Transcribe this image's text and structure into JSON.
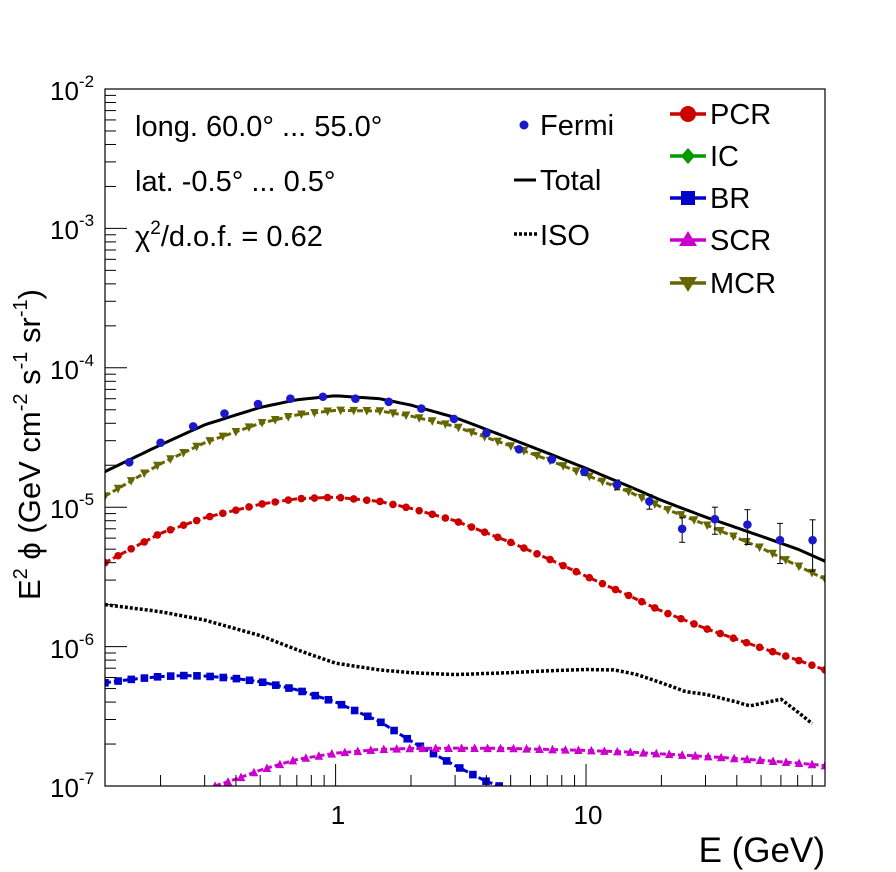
{
  "chart_data": {
    "type": "line",
    "title": "",
    "xlabel": "E (GeV)",
    "ylabel": "E² ϕ (GeV cm⁻² s⁻¹ sr⁻¹)",
    "ylabel_parts": {
      "base": "E",
      "sup1": "2",
      "phi": " ϕ (GeV cm",
      "sup2": "-2",
      "s": " s",
      "sup3": "-1",
      "sr": " sr",
      "sup4": "-1",
      "close": ")"
    },
    "xscale": "log",
    "yscale": "log",
    "xlim": [
      0.12,
      90
    ],
    "ylim": [
      1e-07,
      0.01
    ],
    "x_ticks": [
      {
        "value": 1,
        "label": "1"
      },
      {
        "value": 10,
        "label": "10"
      }
    ],
    "y_ticks": [
      {
        "value": 1e-07,
        "base": "10",
        "exp": "-7"
      },
      {
        "value": 1e-06,
        "base": "10",
        "exp": "-6"
      },
      {
        "value": 1e-05,
        "base": "10",
        "exp": "-5"
      },
      {
        "value": 0.0001,
        "base": "10",
        "exp": "-4"
      },
      {
        "value": 0.001,
        "base": "10",
        "exp": "-3"
      },
      {
        "value": 0.01,
        "base": "10",
        "exp": "-2"
      }
    ],
    "annotations": {
      "longitude": "long. 60.0° ... 55.0°",
      "latitude": "lat. -0.5° ... 0.5°",
      "chi2_symbol": "χ",
      "chi2_sup": "2",
      "chi2_rest": "/d.o.f. = 0.62"
    },
    "legend_left": [
      {
        "name": "Fermi",
        "style": "point"
      },
      {
        "name": "Total",
        "style": "line"
      },
      {
        "name": "ISO",
        "style": "dotted"
      }
    ],
    "legend_right": [
      {
        "name": "PCR",
        "color": "#cc0000",
        "marker": "circle"
      },
      {
        "name": "IC",
        "color": "#009900",
        "marker": "diamond"
      },
      {
        "name": "BR",
        "color": "#0000cc",
        "marker": "square"
      },
      {
        "name": "SCR",
        "color": "#cc00cc",
        "marker": "triangle-up"
      },
      {
        "name": "MCR",
        "color": "#666600",
        "marker": "triangle-down"
      }
    ],
    "fermi": {
      "color": "#1a1acc",
      "x": [
        0.15,
        0.2,
        0.27,
        0.36,
        0.49,
        0.66,
        0.89,
        1.2,
        1.63,
        2.2,
        2.97,
        4.0,
        5.4,
        7.3,
        9.85,
        13.3,
        17.9,
        24.2,
        32.7,
        44.1,
        59.5,
        80.3
      ],
      "y": [
        2.1e-05,
        2.9e-05,
        3.8e-05,
        4.7e-05,
        5.5e-05,
        6e-05,
        6.2e-05,
        6e-05,
        5.7e-05,
        5.1e-05,
        4.3e-05,
        3.4e-05,
        2.6e-05,
        2.2e-05,
        1.8e-05,
        1.45e-05,
        1.1e-05,
        7e-06,
        8.2e-06,
        7.5e-06,
        5.8e-06,
        5.8e-06
      ],
      "err_rel": [
        0.02,
        0.02,
        0.02,
        0.02,
        0.02,
        0.02,
        0.02,
        0.02,
        0.02,
        0.02,
        0.03,
        0.03,
        0.04,
        0.05,
        0.06,
        0.08,
        0.12,
        0.2,
        0.22,
        0.28,
        0.32,
        0.4
      ]
    },
    "series": [
      {
        "name": "Total",
        "color": "#000000",
        "style": "solid",
        "x": [
          0.12,
          0.2,
          0.3,
          0.5,
          0.7,
          1.0,
          1.5,
          2.0,
          3.0,
          5.0,
          7.0,
          10,
          15,
          20,
          30,
          50,
          70,
          90
        ],
        "y": [
          1.8e-05,
          2.8e-05,
          3.9e-05,
          5.2e-05,
          5.9e-05,
          6.3e-05,
          6e-05,
          5.4e-05,
          4.4e-05,
          3.1e-05,
          2.45e-05,
          1.9e-05,
          1.4e-05,
          1.12e-05,
          8.5e-06,
          6.2e-06,
          5e-06,
          4.1e-06
        ]
      },
      {
        "name": "MCR",
        "color": "#666600",
        "style": "markers",
        "marker": "triangle-down",
        "x": [
          0.12,
          0.2,
          0.3,
          0.5,
          0.7,
          1.0,
          1.5,
          2.0,
          3.0,
          5.0,
          7.0,
          10,
          15,
          20,
          30,
          50,
          70,
          90
        ],
        "y": [
          1.2e-05,
          2.05e-05,
          2.9e-05,
          4e-05,
          4.6e-05,
          4.95e-05,
          4.9e-05,
          4.5e-05,
          3.8e-05,
          2.75e-05,
          2.2e-05,
          1.7e-05,
          1.28e-05,
          1e-05,
          7.5e-06,
          5.1e-06,
          3.8e-06,
          3.05e-06
        ]
      },
      {
        "name": "PCR",
        "color": "#cc0000",
        "style": "markers",
        "marker": "circle",
        "x": [
          0.12,
          0.2,
          0.3,
          0.5,
          0.7,
          1.0,
          1.5,
          2.0,
          3.0,
          5.0,
          7.0,
          10,
          15,
          20,
          30,
          50,
          70,
          90
        ],
        "y": [
          4e-06,
          6.5e-06,
          8.4e-06,
          1.05e-05,
          1.15e-05,
          1.18e-05,
          1.1e-05,
          9.8e-06,
          8e-06,
          5.6e-06,
          4.3e-06,
          3.2e-06,
          2.3e-06,
          1.8e-06,
          1.35e-06,
          9.8e-07,
          8e-07,
          6.8e-07
        ]
      },
      {
        "name": "ISO",
        "color": "#000000",
        "style": "dotted",
        "x": [
          0.12,
          0.2,
          0.3,
          0.5,
          0.7,
          1.0,
          1.5,
          2.0,
          3.0,
          5.0,
          7.0,
          10,
          13,
          16,
          20,
          25,
          30,
          40,
          45,
          55,
          60,
          70,
          80
        ],
        "y": [
          2e-06,
          1.78e-06,
          1.55e-06,
          1.2e-06,
          9.5e-07,
          7.6e-07,
          6.8e-07,
          6.5e-07,
          6.3e-07,
          6.5e-07,
          6.7e-07,
          6.85e-07,
          6.8e-07,
          6.3e-07,
          5.5e-07,
          4.75e-07,
          4.55e-07,
          4e-07,
          3.75e-07,
          4.05e-07,
          4.2e-07,
          3.4e-07,
          2.8e-07
        ]
      },
      {
        "name": "BR",
        "color": "#0000cc",
        "style": "markers",
        "marker": "square",
        "x": [
          0.12,
          0.15,
          0.2,
          0.25,
          0.3,
          0.4,
          0.5,
          0.7,
          1.0,
          1.5,
          2.0,
          3.0,
          4.0,
          4.5
        ],
        "y": [
          5.5e-07,
          5.8e-07,
          6.1e-07,
          6.2e-07,
          6.15e-07,
          5.9e-07,
          5.6e-07,
          4.9e-07,
          4e-07,
          2.9e-07,
          2.1e-07,
          1.4e-07,
          1.08e-07,
          1e-07
        ]
      },
      {
        "name": "SCR",
        "color": "#cc00cc",
        "style": "markers",
        "marker": "triangle-up",
        "x": [
          0.33,
          0.4,
          0.5,
          0.7,
          1.0,
          1.5,
          2.0,
          3.0,
          5.0,
          7.0,
          10,
          15,
          20,
          30,
          50,
          70,
          90
        ],
        "y": [
          1e-07,
          1.12e-07,
          1.3e-07,
          1.55e-07,
          1.72e-07,
          1.83e-07,
          1.86e-07,
          1.87e-07,
          1.86e-07,
          1.83e-07,
          1.8e-07,
          1.75e-07,
          1.7e-07,
          1.63e-07,
          1.53e-07,
          1.46e-07,
          1.4e-07
        ]
      }
    ]
  }
}
